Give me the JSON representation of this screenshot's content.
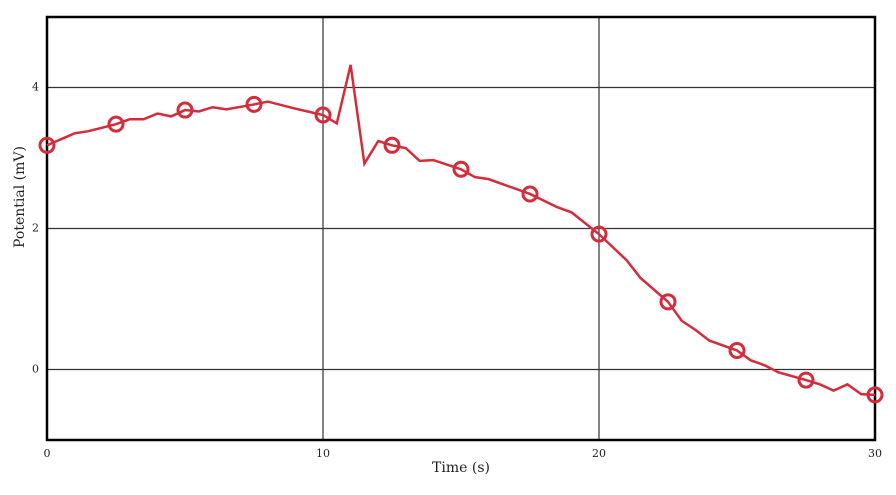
{
  "chart_data": {
    "type": "line",
    "xlabel": "Time (s)",
    "ylabel": "Potential (mV)",
    "xlim": [
      0,
      30
    ],
    "ylim": [
      -1,
      5
    ],
    "xticks": [
      0,
      10,
      20,
      30
    ],
    "yticks": [
      0,
      2,
      4
    ],
    "grid": true,
    "x": [
      0,
      1,
      1.5,
      2.5,
      3,
      3.5,
      4,
      4.5,
      5,
      5.5,
      6,
      6.5,
      7.5,
      8,
      9,
      10,
      10.5,
      11,
      11.5,
      12,
      12.5,
      13,
      13.5,
      14,
      15,
      15.5,
      16,
      17.5,
      18.5,
      19,
      20,
      21,
      21.5,
      22.5,
      23,
      23.5,
      24,
      25,
      25.5,
      26,
      26.5,
      27.5,
      28,
      28.5,
      29,
      29.5,
      30
    ],
    "series": [
      {
        "color": "#d62b3a",
        "marker": "circle",
        "marker_interval": 2.5,
        "values": [
          3.18,
          3.35,
          3.38,
          3.48,
          3.55,
          3.55,
          3.63,
          3.59,
          3.68,
          3.66,
          3.72,
          3.69,
          3.76,
          3.8,
          3.7,
          3.61,
          3.49,
          4.32,
          2.92,
          3.24,
          3.18,
          3.14,
          2.96,
          2.97,
          2.84,
          2.73,
          2.7,
          2.49,
          2.3,
          2.23,
          1.92,
          1.55,
          1.3,
          0.96,
          0.69,
          0.56,
          0.41,
          0.27,
          0.13,
          0.06,
          -0.04,
          -0.15,
          -0.21,
          -0.3,
          -0.21,
          -0.35,
          -0.36
        ]
      }
    ]
  }
}
